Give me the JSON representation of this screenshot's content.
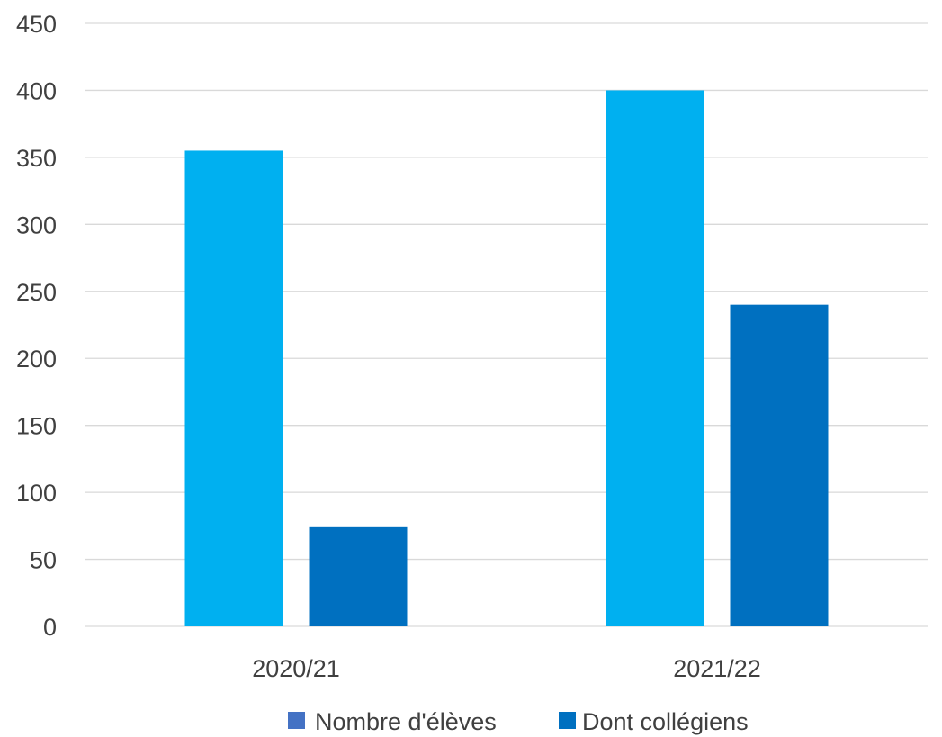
{
  "chart_data": {
    "type": "bar",
    "title": "",
    "xlabel": "",
    "ylabel": "",
    "categories": [
      "2020/21",
      "2021/22"
    ],
    "series": [
      {
        "name": "Nombre d'élèves",
        "values": [
          355,
          400
        ],
        "bar_color": "#00b0f0",
        "legend_color": "#4472c4"
      },
      {
        "name": "Dont collégiens",
        "values": [
          74,
          240
        ],
        "bar_color": "#0070c0",
        "legend_color": "#0070c0"
      }
    ],
    "ylim": [
      0,
      450
    ],
    "yticks": [
      0,
      50,
      100,
      150,
      200,
      250,
      300,
      350,
      400,
      450
    ],
    "grid": true,
    "legend_position": "bottom",
    "colors": {
      "gridline": "#d9d9d9",
      "axis": "#d9d9d9",
      "text": "#404040"
    }
  }
}
